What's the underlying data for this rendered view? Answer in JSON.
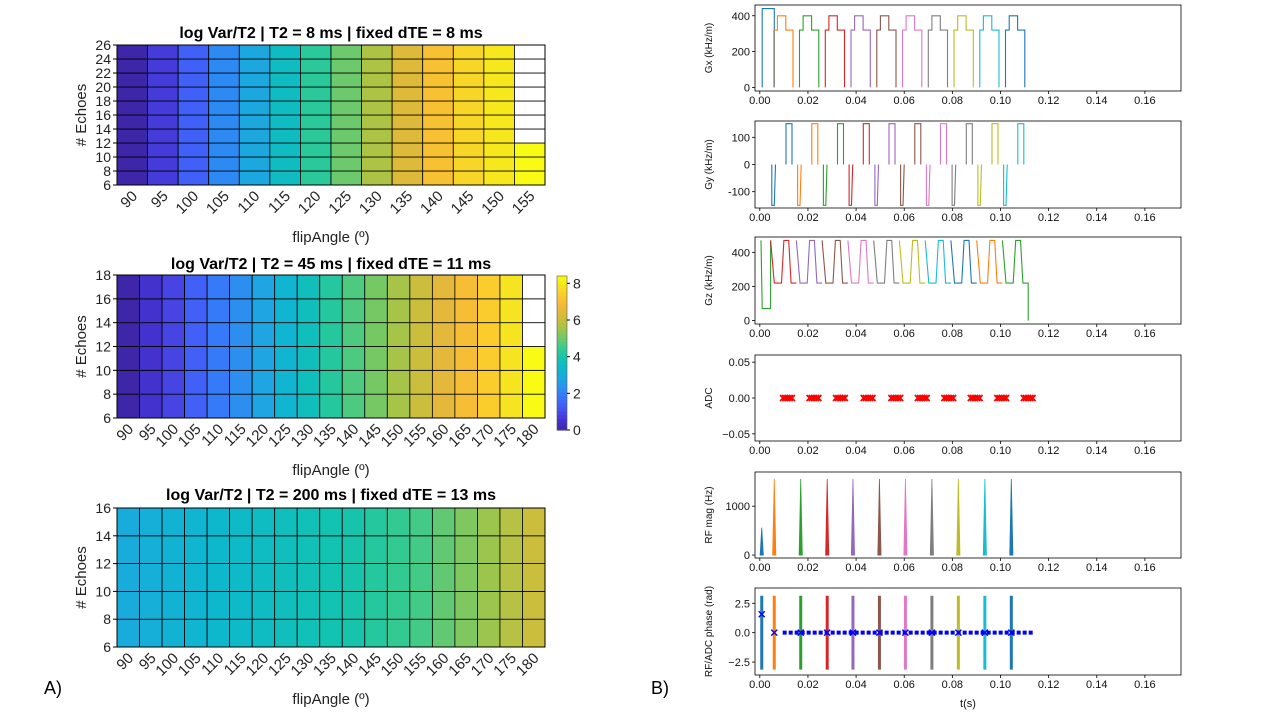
{
  "panel_labels": {
    "a": "A)",
    "b": "B)"
  },
  "colors": {
    "parula": [
      "#3e26a8",
      "#4433d1",
      "#4751f0",
      "#3a6ffd",
      "#2d8cf2",
      "#1fa5e1",
      "#0db7cf",
      "#12c3b0",
      "#37ca8e",
      "#70c969",
      "#a6c447",
      "#cfbd3b",
      "#f1b53a",
      "#fbc72f",
      "#f6e121",
      "#f9fb15"
    ],
    "series": [
      "#1f77b4",
      "#ff7f0e",
      "#2ca02c",
      "#d62728",
      "#9467bd",
      "#8c564b",
      "#e377c2",
      "#7f7f7f",
      "#bcbd22",
      "#17becf"
    ],
    "adc_marker": "#ff0000",
    "phase_marker": "#0000ff"
  },
  "chart_data": [
    {
      "type": "heatmap",
      "id": "hm1",
      "title": "log Var/T2 | T2 = 8 ms | fixed dTE = 8 ms",
      "xlabel": "flipAngle (º)",
      "ylabel": "# Echoes",
      "x": [
        90,
        95,
        100,
        105,
        110,
        115,
        120,
        125,
        130,
        135,
        140,
        145,
        150,
        155
      ],
      "y": [
        6,
        8,
        10,
        12,
        14,
        16,
        18,
        20,
        22,
        24,
        26
      ],
      "yticks": [
        6,
        8,
        10,
        12,
        14,
        16,
        18,
        20,
        22,
        24,
        26
      ],
      "values_by_column": [
        0.0,
        0.7,
        1.4,
        2.2,
        2.9,
        3.6,
        4.3,
        5.0,
        5.7,
        6.4,
        7.1,
        7.6,
        8.0,
        8.4
      ],
      "valid_rows_by_column": [
        10,
        10,
        10,
        10,
        10,
        10,
        10,
        10,
        10,
        10,
        10,
        10,
        10,
        3
      ],
      "clim": [
        0,
        8.4
      ]
    },
    {
      "type": "heatmap",
      "id": "hm2",
      "title": "log Var/T2 | T2 = 45 ms | fixed dTE = 11 ms",
      "xlabel": "flipAngle (º)",
      "ylabel": "# Echoes",
      "x": [
        90,
        95,
        100,
        105,
        110,
        115,
        120,
        125,
        130,
        135,
        140,
        145,
        150,
        155,
        160,
        165,
        170,
        175,
        180
      ],
      "y": [
        6,
        8,
        10,
        12,
        14,
        16,
        18
      ],
      "yticks": [
        6,
        8,
        10,
        12,
        14,
        16,
        18
      ],
      "values_by_column": [
        0.0,
        0.5,
        0.9,
        1.4,
        1.9,
        2.3,
        2.8,
        3.3,
        3.7,
        4.2,
        4.7,
        5.1,
        5.6,
        6.1,
        6.5,
        7.0,
        7.4,
        7.9,
        8.4
      ],
      "valid_rows_by_column": [
        6,
        6,
        6,
        6,
        6,
        6,
        6,
        6,
        6,
        6,
        6,
        6,
        6,
        6,
        6,
        6,
        6,
        6,
        3
      ],
      "clim": [
        0,
        8.4
      ],
      "colorbar": {
        "ticks": [
          0,
          2,
          4,
          6,
          8
        ]
      }
    },
    {
      "type": "heatmap",
      "id": "hm3",
      "title": "log Var/T2 | T2 = 200 ms | fixed dTE = 13 ms",
      "xlabel": "flipAngle (º)",
      "ylabel": "# Echoes",
      "x": [
        90,
        95,
        100,
        105,
        110,
        115,
        120,
        125,
        130,
        135,
        140,
        145,
        150,
        155,
        160,
        165,
        170,
        175,
        180
      ],
      "y": [
        6,
        8,
        10,
        12,
        14,
        16
      ],
      "yticks": [
        6,
        8,
        10,
        12,
        14,
        16
      ],
      "values_by_column": [
        3.0,
        3.1,
        3.2,
        3.3,
        3.4,
        3.5,
        3.6,
        3.7,
        3.8,
        3.9,
        4.0,
        4.2,
        4.4,
        4.6,
        4.9,
        5.2,
        5.5,
        5.8,
        6.1
      ],
      "valid_rows_by_column": [
        5,
        5,
        5,
        5,
        5,
        5,
        5,
        5,
        5,
        5,
        5,
        5,
        5,
        5,
        5,
        5,
        5,
        5,
        5
      ],
      "clim": [
        0,
        8.4
      ]
    },
    {
      "type": "line",
      "id": "gx",
      "ylabel": "Gx (kHz/m)",
      "xlim": [
        -0.002,
        0.175
      ],
      "ylim": [
        -20,
        460
      ],
      "xticks": [
        "0.00",
        "0.02",
        "0.04",
        "0.06",
        "0.08",
        "0.10",
        "0.12",
        "0.14",
        "0.16"
      ],
      "xtick_values": [
        0,
        0.02,
        0.04,
        0.06,
        0.08,
        0.1,
        0.12,
        0.14,
        0.16
      ],
      "yticks": [
        0,
        200,
        400
      ],
      "first_pulse": {
        "t0": 0.001,
        "t1": 0.006,
        "amp": 440
      },
      "trapezoids": {
        "start": 0.0058,
        "period": 0.0107,
        "count": 10,
        "low": 320,
        "high": 400,
        "low_width": 0.0015,
        "high_width": 0.0035
      }
    },
    {
      "type": "line",
      "id": "gy",
      "ylabel": "Gy (kHz/m)",
      "xlim": [
        -0.002,
        0.175
      ],
      "ylim": [
        -160,
        160
      ],
      "xticks": [
        "0.00",
        "0.02",
        "0.04",
        "0.06",
        "0.08",
        "0.10",
        "0.12",
        "0.14",
        "0.16"
      ],
      "xtick_values": [
        0,
        0.02,
        0.04,
        0.06,
        0.08,
        0.1,
        0.12,
        0.14,
        0.16
      ],
      "yticks": [
        -100,
        0,
        100
      ],
      "blips": {
        "start": 0.005,
        "period": 0.0107,
        "count": 10,
        "pos_amp": 150,
        "neg_amp": -150,
        "width": 0.0025
      }
    },
    {
      "type": "line",
      "id": "gz",
      "ylabel": "Gz (kHz/m)",
      "xlim": [
        -0.002,
        0.175
      ],
      "ylim": [
        -20,
        490
      ],
      "xticks": [
        "0.00",
        "0.02",
        "0.04",
        "0.06",
        "0.08",
        "0.10",
        "0.12",
        "0.14",
        "0.16"
      ],
      "xtick_values": [
        0,
        0.02,
        0.04,
        0.06,
        0.08,
        0.1,
        0.12,
        0.14,
        0.16
      ],
      "yticks": [
        0,
        200,
        400
      ],
      "first_pulse": {
        "t0": 0.0005,
        "t1": 0.0045,
        "amp": 470,
        "plateau": 70
      },
      "crushers": {
        "start": 0.0045,
        "period": 0.0107,
        "count": 10,
        "base": 220,
        "peak": 470
      }
    },
    {
      "type": "scatter",
      "id": "adc",
      "ylabel": "ADC",
      "xlim": [
        -0.002,
        0.175
      ],
      "ylim": [
        -0.06,
        0.06
      ],
      "xticks": [
        "0.00",
        "0.02",
        "0.04",
        "0.06",
        "0.08",
        "0.10",
        "0.12",
        "0.14",
        "0.16"
      ],
      "xtick_values": [
        0,
        0.02,
        0.04,
        0.06,
        0.08,
        0.1,
        0.12,
        0.14,
        0.16
      ],
      "yticks": [
        -0.05,
        0.0,
        0.05
      ],
      "ytick_labels": [
        "−0.05",
        "0.00",
        "0.05"
      ],
      "groups": [
        0.0115,
        0.0225,
        0.0335,
        0.045,
        0.0565,
        0.0675,
        0.0785,
        0.0895,
        0.1005,
        0.1115
      ],
      "y_value": 0.0
    },
    {
      "type": "line",
      "id": "rfmag",
      "ylabel": "RF mag (Hz)",
      "xlim": [
        -0.002,
        0.175
      ],
      "ylim": [
        -60,
        1700
      ],
      "xticks": [
        "0.00",
        "0.02",
        "0.04",
        "0.06",
        "0.08",
        "0.10",
        "0.12",
        "0.14",
        "0.16"
      ],
      "xtick_values": [
        0,
        0.02,
        0.04,
        0.06,
        0.08,
        0.1,
        0.12,
        0.14,
        0.16
      ],
      "yticks": [
        0,
        1000
      ],
      "pulses": [
        {
          "t": 0.0008,
          "amp": 560
        },
        {
          "t": 0.006,
          "amp": 1560
        },
        {
          "t": 0.017,
          "amp": 1560
        },
        {
          "t": 0.028,
          "amp": 1560
        },
        {
          "t": 0.0387,
          "amp": 1560
        },
        {
          "t": 0.0497,
          "amp": 1560
        },
        {
          "t": 0.0605,
          "amp": 1560
        },
        {
          "t": 0.0715,
          "amp": 1560
        },
        {
          "t": 0.0825,
          "amp": 1560
        },
        {
          "t": 0.0935,
          "amp": 1560
        },
        {
          "t": 0.1045,
          "amp": 1560
        }
      ]
    },
    {
      "type": "scatter",
      "id": "rfphase",
      "ylabel": "RF/ADC phase (rad)",
      "xlabel": "t(s)",
      "xlim": [
        -0.002,
        0.175
      ],
      "ylim": [
        -3.6,
        3.8
      ],
      "xticks": [
        "0.00",
        "0.02",
        "0.04",
        "0.06",
        "0.08",
        "0.10",
        "0.12",
        "0.14",
        "0.16"
      ],
      "xtick_values": [
        0,
        0.02,
        0.04,
        0.06,
        0.08,
        0.1,
        0.12,
        0.14,
        0.16
      ],
      "yticks": [
        -2.5,
        0.0,
        2.5
      ],
      "ytick_labels": [
        "−2.5",
        "0.0",
        "2.5"
      ],
      "bars": [
        0.0008,
        0.006,
        0.017,
        0.028,
        0.0387,
        0.0497,
        0.0605,
        0.0715,
        0.0825,
        0.0935,
        0.1045
      ],
      "bar_range": [
        -3.14,
        3.14
      ],
      "x_markers": [
        {
          "t": 0.0008,
          "y": 1.57
        },
        {
          "t": 0.006,
          "y": 0.0
        },
        {
          "t": 0.017,
          "y": 0.0
        },
        {
          "t": 0.028,
          "y": 0.0
        },
        {
          "t": 0.0387,
          "y": 0.0
        },
        {
          "t": 0.0497,
          "y": 0.0
        },
        {
          "t": 0.0605,
          "y": 0.0
        },
        {
          "t": 0.0715,
          "y": 0.0
        },
        {
          "t": 0.0825,
          "y": 0.0
        },
        {
          "t": 0.0935,
          "y": 0.0
        },
        {
          "t": 0.1045,
          "y": 0.0
        }
      ],
      "adc_line": {
        "start": 0.0095,
        "end": 0.1135,
        "y": 0.0
      }
    }
  ]
}
